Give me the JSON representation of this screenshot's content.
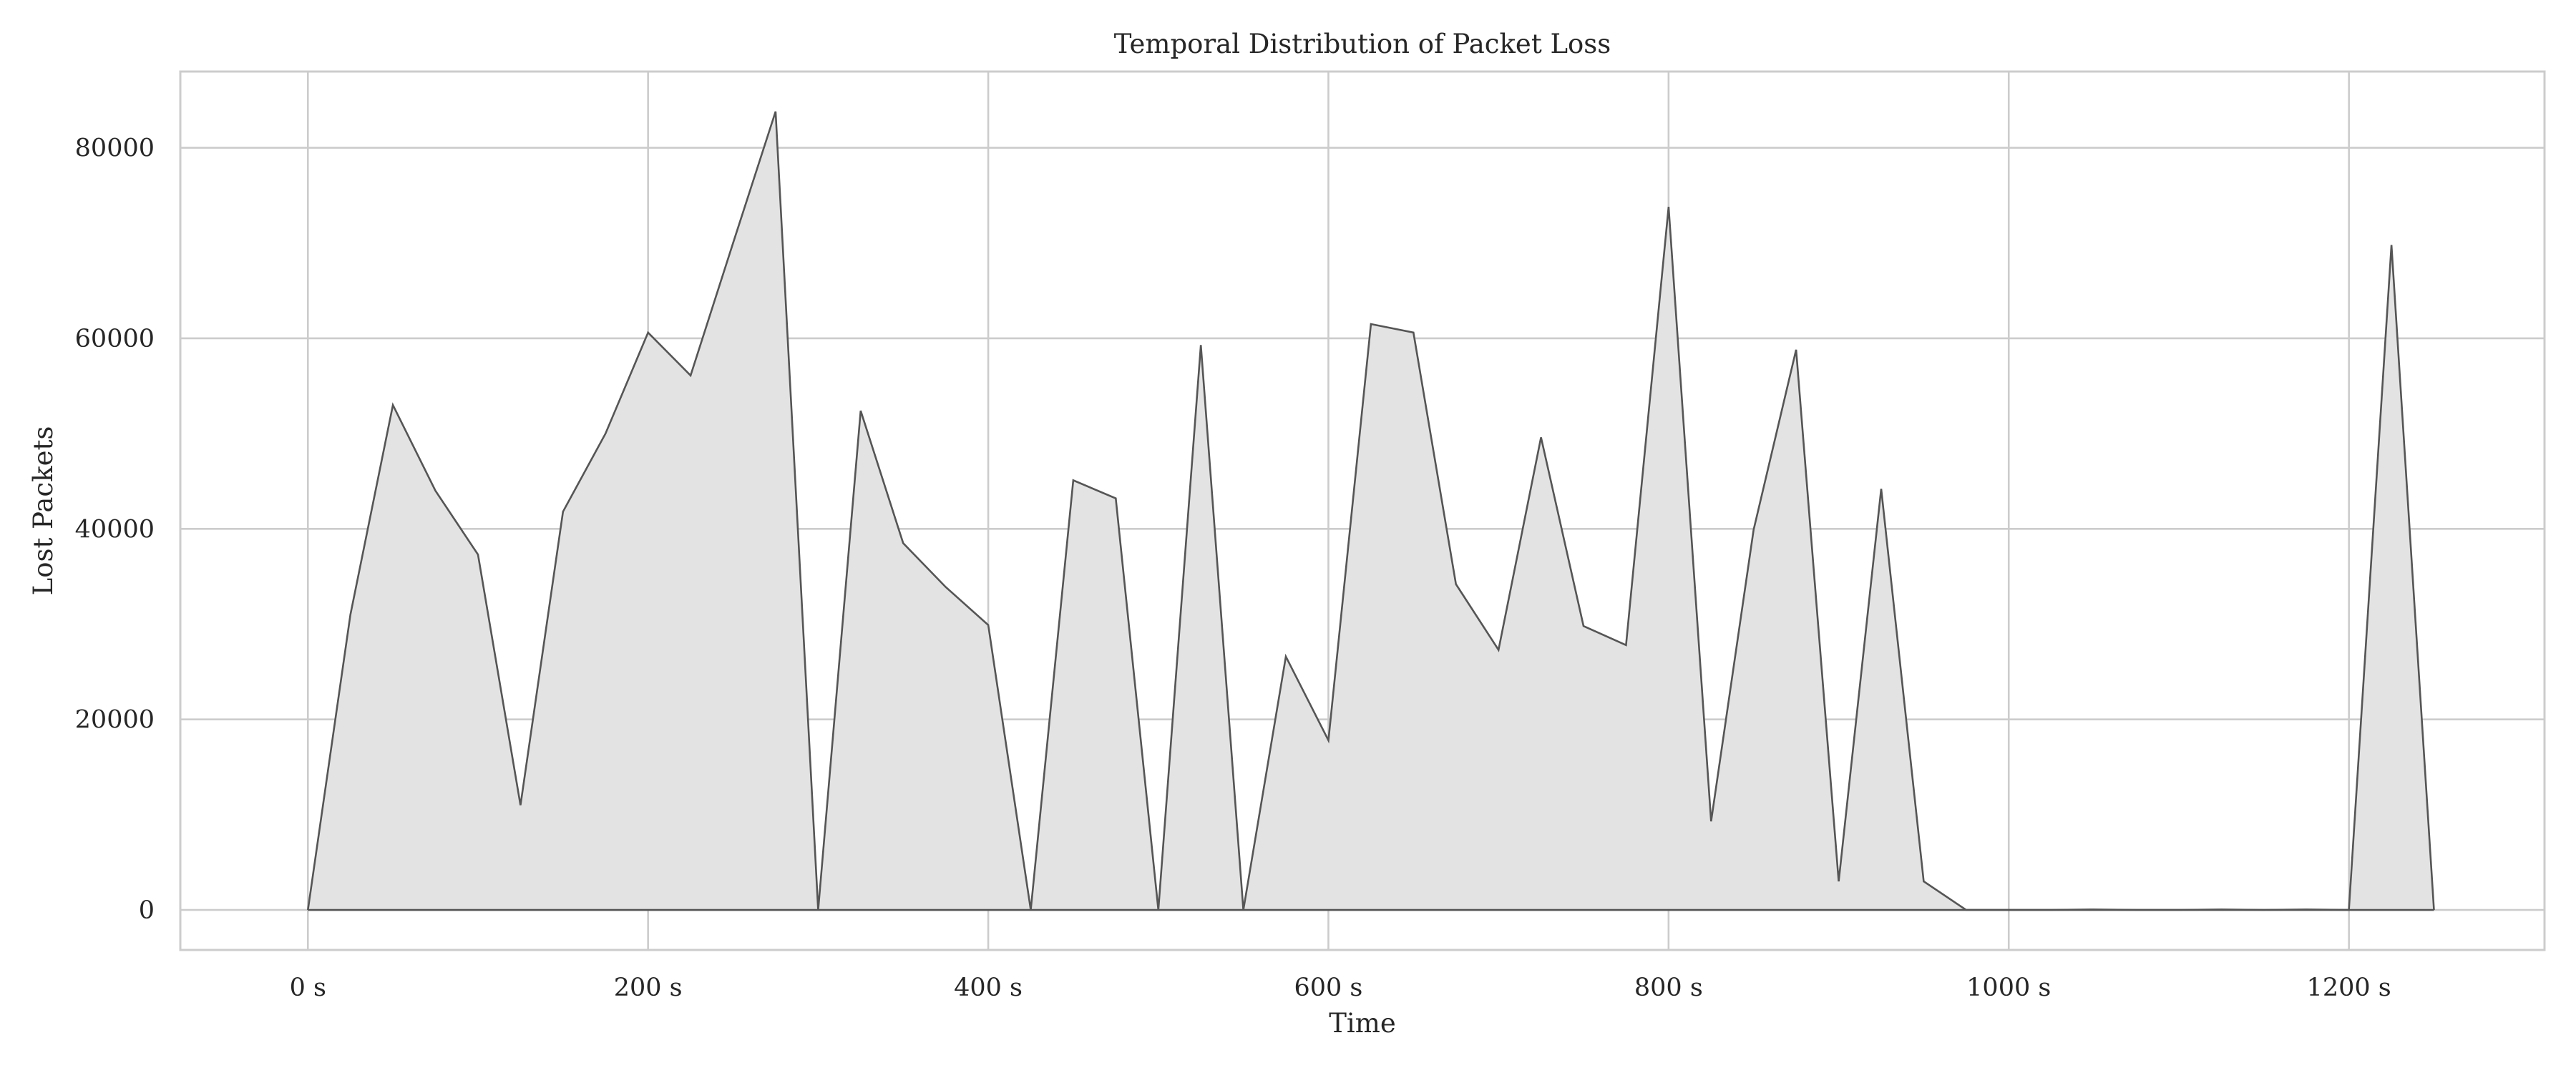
{
  "chart_data": {
    "type": "area",
    "title": "Temporal Distribution of Packet Loss",
    "xlabel": "Time",
    "ylabel": "Lost Packets",
    "xlim": [
      -75,
      1315
    ],
    "ylim": [
      -4200,
      88000
    ],
    "x_ticks": [
      0,
      200,
      400,
      600,
      800,
      1000,
      1200
    ],
    "x_tick_labels": [
      "0 s",
      "200 s",
      "400 s",
      "600 s",
      "800 s",
      "1000 s",
      "1200 s"
    ],
    "y_ticks": [
      0,
      20000,
      40000,
      60000,
      80000
    ],
    "y_tick_labels": [
      "0",
      "20000",
      "40000",
      "60000",
      "80000"
    ],
    "grid": true,
    "colors": {
      "line": "#555555",
      "fill": "#e3e3e3",
      "grid": "#cccccc"
    },
    "series": [
      {
        "x": [
          0,
          25,
          50,
          75,
          100,
          125,
          150,
          175,
          200,
          225,
          250,
          275,
          300,
          325,
          350,
          375,
          400,
          425,
          450,
          475,
          500,
          525,
          550,
          575,
          600,
          625,
          650,
          675,
          700,
          725,
          750,
          775,
          800,
          825,
          850,
          875,
          900,
          925,
          950,
          975,
          1000,
          1025,
          1050,
          1075,
          1100,
          1125,
          1150,
          1175,
          1200,
          1225,
          1250
        ],
        "values": [
          0,
          31000,
          53000,
          44000,
          37300,
          11000,
          41800,
          50000,
          60600,
          56100,
          70000,
          83800,
          0,
          52400,
          38500,
          33900,
          29900,
          0,
          45100,
          43200,
          0,
          59300,
          0,
          26600,
          17800,
          61500,
          60600,
          34200,
          27300,
          49600,
          29800,
          27800,
          73800,
          9300,
          39900,
          58800,
          3000,
          44200,
          3000,
          0,
          0,
          0,
          50,
          0,
          0,
          50,
          0,
          50,
          0,
          69800,
          0
        ]
      }
    ]
  }
}
